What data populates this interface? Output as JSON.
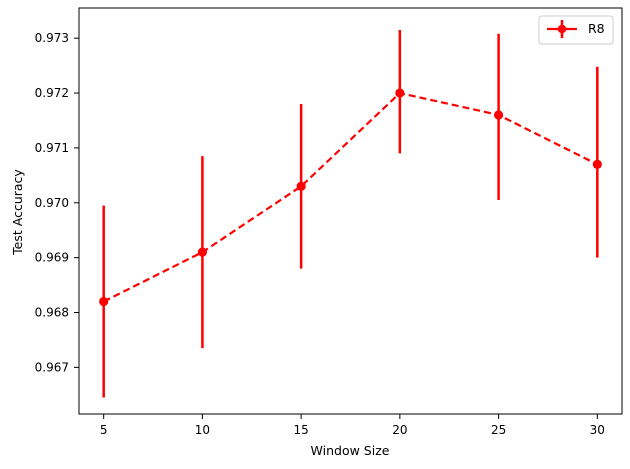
{
  "chart_data": {
    "type": "line",
    "title": "",
    "xlabel": "Window Size",
    "ylabel": "Test Accuracy",
    "xlim": [
      3.75,
      31.25
    ],
    "ylim": [
      0.96615,
      0.97355
    ],
    "x_ticks": [
      5,
      10,
      15,
      20,
      25,
      30
    ],
    "y_ticks": [
      0.967,
      0.968,
      0.969,
      0.97,
      0.971,
      0.972,
      0.973
    ],
    "y_tick_labels": [
      "0.967",
      "0.968",
      "0.969",
      "0.970",
      "0.971",
      "0.972",
      "0.973"
    ],
    "grid": false,
    "legend": {
      "placement": "top-right"
    },
    "series": [
      {
        "name": "R8",
        "color": "#ff0000",
        "line_style": "dashed",
        "marker": "circle",
        "x": [
          5,
          10,
          15,
          20,
          25,
          30
        ],
        "y": [
          0.9682,
          0.9691,
          0.9703,
          0.972,
          0.9716,
          0.9707
        ],
        "error_lower": [
          0.96645,
          0.96735,
          0.9688,
          0.9709,
          0.97005,
          0.969
        ],
        "error_upper": [
          0.96995,
          0.97085,
          0.9718,
          0.97315,
          0.97308,
          0.97248
        ]
      }
    ]
  }
}
